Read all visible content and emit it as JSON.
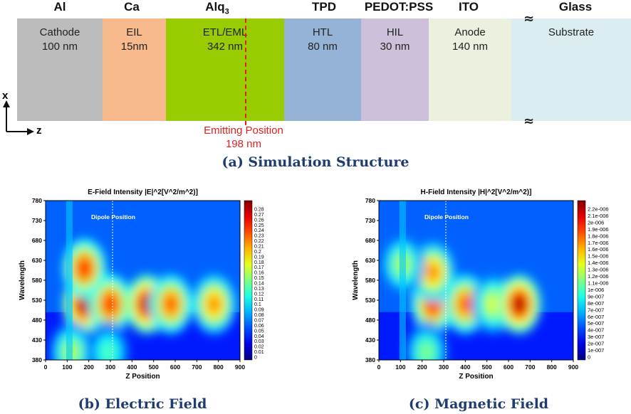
{
  "structure": {
    "layers": [
      {
        "material": "Al",
        "role": "Cathode",
        "thickness": "100 nm",
        "color": "#bcbcbc"
      },
      {
        "material": "Ca",
        "role": "EIL",
        "thickness": "15nm",
        "color": "#f8b98c"
      },
      {
        "material": "Alq",
        "material_sub": "3",
        "role": "ETL/EML",
        "thickness": "342 nm",
        "color": "#99cc00"
      },
      {
        "material": "TPD",
        "role": "HTL",
        "thickness": "80 nm",
        "color": "#95b3d7"
      },
      {
        "material": "PEDOT:PSS",
        "role": "HIL",
        "thickness": "30 nm",
        "color": "#ccc0da"
      },
      {
        "material": "ITO",
        "role": "Anode",
        "thickness": "140 nm",
        "color": "#ebf1de"
      },
      {
        "material": "Glass",
        "role": "Substrate",
        "thickness": "",
        "color": "#dcedf2"
      }
    ],
    "emitting_label": "Emitting Position",
    "emitting_value": "198 nm",
    "axis_x": "x",
    "axis_z": "z",
    "break_symbol": "≈",
    "caption": "(a) Simulation Structure"
  },
  "chart_data": [
    {
      "type": "heatmap",
      "title": "E-Field Intensity |E|^2[V^2/m^2)]",
      "xlabel": "Z Position",
      "ylabel": "Wavelength",
      "xticks": [
        "0",
        "100",
        "200",
        "300",
        "400",
        "500",
        "600",
        "700",
        "800",
        "900"
      ],
      "yticks": [
        "780",
        "730",
        "680",
        "630",
        "580",
        "530",
        "480",
        "430",
        "380"
      ],
      "xlim": [
        0,
        900
      ],
      "ylim": [
        380,
        780
      ],
      "annotation": "Dipole Position",
      "dipole_z": 310,
      "colorbar_min": 0,
      "colorbar_max": 0.29,
      "colorbar_labels": [
        "0.28",
        "0.27",
        "0.26",
        "0.25",
        "0.24",
        "0.23",
        "0.22",
        "0.21",
        "0.2",
        "0.19",
        "0.18",
        "0.17",
        "0.16",
        "0.15",
        "0.14",
        "0.13",
        "0.12",
        "0.11",
        "0.1",
        "0.09",
        "0.08",
        "0.07",
        "0.06",
        "0.05",
        "0.04",
        "0.03",
        "0.02",
        "0.01",
        "0"
      ],
      "hotspots": [
        {
          "z": 180,
          "wl": 520,
          "level": 0.95
        },
        {
          "z": 180,
          "wl": 610,
          "level": 0.85
        },
        {
          "z": 120,
          "wl": 400,
          "level": 0.55
        },
        {
          "z": 300,
          "wl": 520,
          "level": 0.85
        },
        {
          "z": 470,
          "wl": 520,
          "level": 0.95
        },
        {
          "z": 580,
          "wl": 520,
          "level": 0.8
        },
        {
          "z": 780,
          "wl": 520,
          "level": 0.75
        },
        {
          "z": 290,
          "wl": 400,
          "level": 0.45
        }
      ],
      "caption": "(b) Electric Field"
    },
    {
      "type": "heatmap",
      "title": "H-Field Intensity |H|^2[V^2/m^2)]",
      "xlabel": "Z Position",
      "ylabel": "Wavelength",
      "xticks": [
        "0",
        "100",
        "200",
        "300",
        "400",
        "500",
        "600",
        "700",
        "800",
        "900"
      ],
      "yticks": [
        "780",
        "730",
        "680",
        "630",
        "580",
        "530",
        "480",
        "430",
        "380"
      ],
      "xlim": [
        0,
        900
      ],
      "ylim": [
        380,
        780
      ],
      "annotation": "Dipole Position",
      "dipole_z": 310,
      "colorbar_min": 0,
      "colorbar_max": 2.3e-06,
      "colorbar_labels": [
        "2.2e-006",
        "2.1e-006",
        "2e-006",
        "1.9e-006",
        "1.8e-006",
        "1.7e-006",
        "1.6e-006",
        "1.5e-006",
        "1.4e-006",
        "1.3e-006",
        "1.2e-006",
        "1.1e-006",
        "1e-006",
        "9e-007",
        "8e-007",
        "7e-007",
        "6e-007",
        "5e-007",
        "4e-007",
        "3e-007",
        "2e-007",
        "1e-007",
        "0"
      ],
      "hotspots": [
        {
          "z": 250,
          "wl": 520,
          "level": 0.85
        },
        {
          "z": 250,
          "wl": 600,
          "level": 0.75
        },
        {
          "z": 400,
          "wl": 520,
          "level": 0.8
        },
        {
          "z": 530,
          "wl": 520,
          "level": 0.6
        },
        {
          "z": 650,
          "wl": 520,
          "level": 0.95
        },
        {
          "z": 110,
          "wl": 620,
          "level": 0.55
        },
        {
          "z": 220,
          "wl": 400,
          "level": 0.5
        }
      ],
      "caption": "(c) Magnetic Field"
    }
  ]
}
